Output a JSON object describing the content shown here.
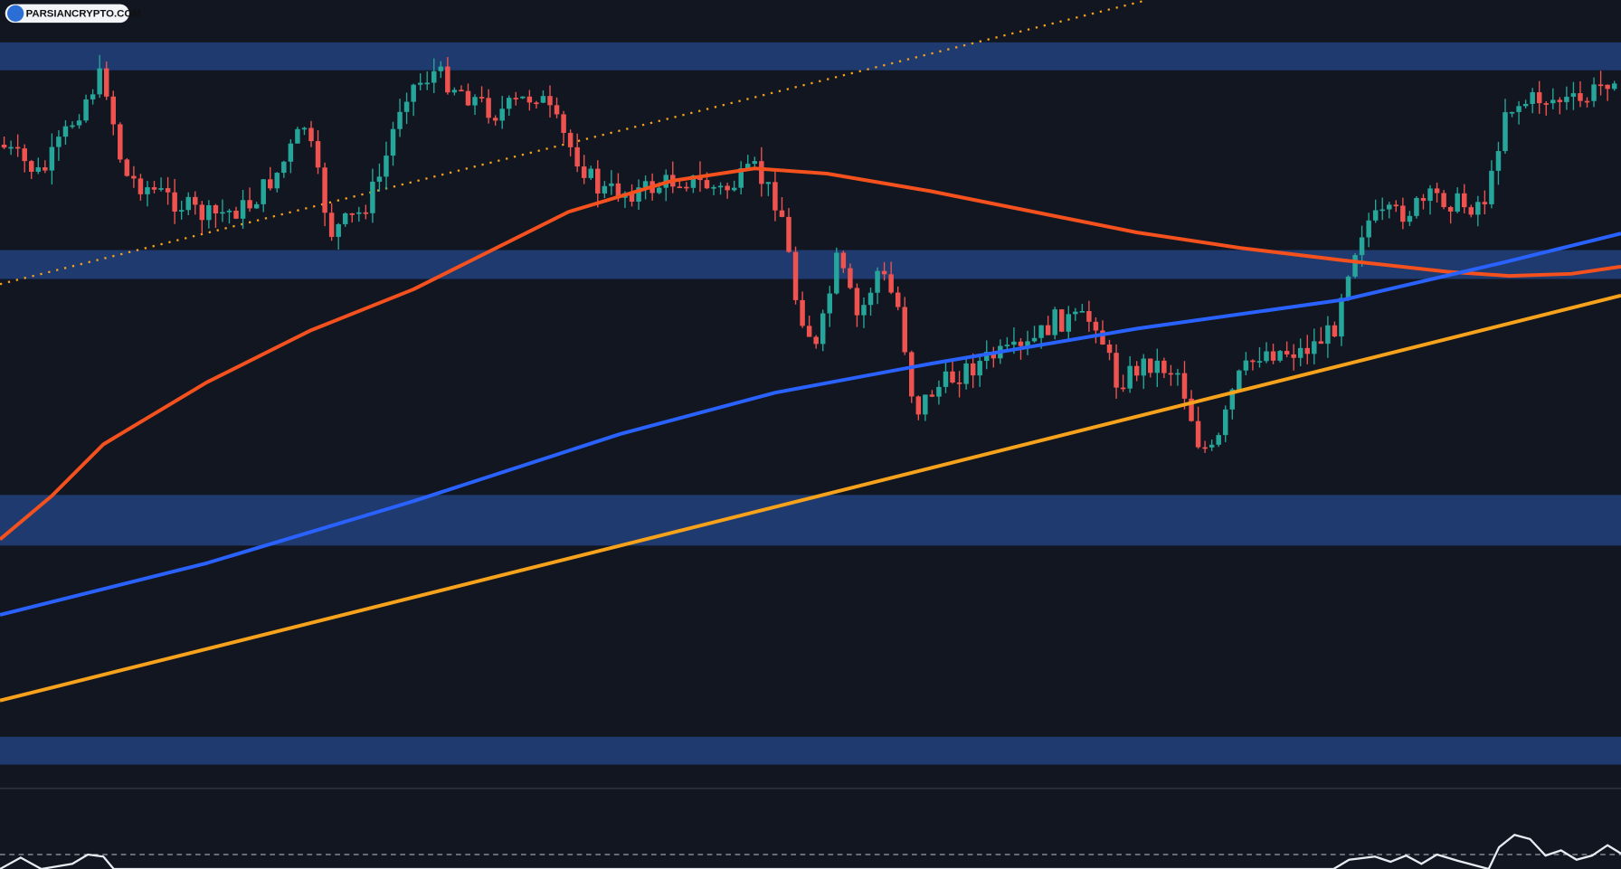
{
  "watermark": "PARSIANCRYPTO.COM"
}
